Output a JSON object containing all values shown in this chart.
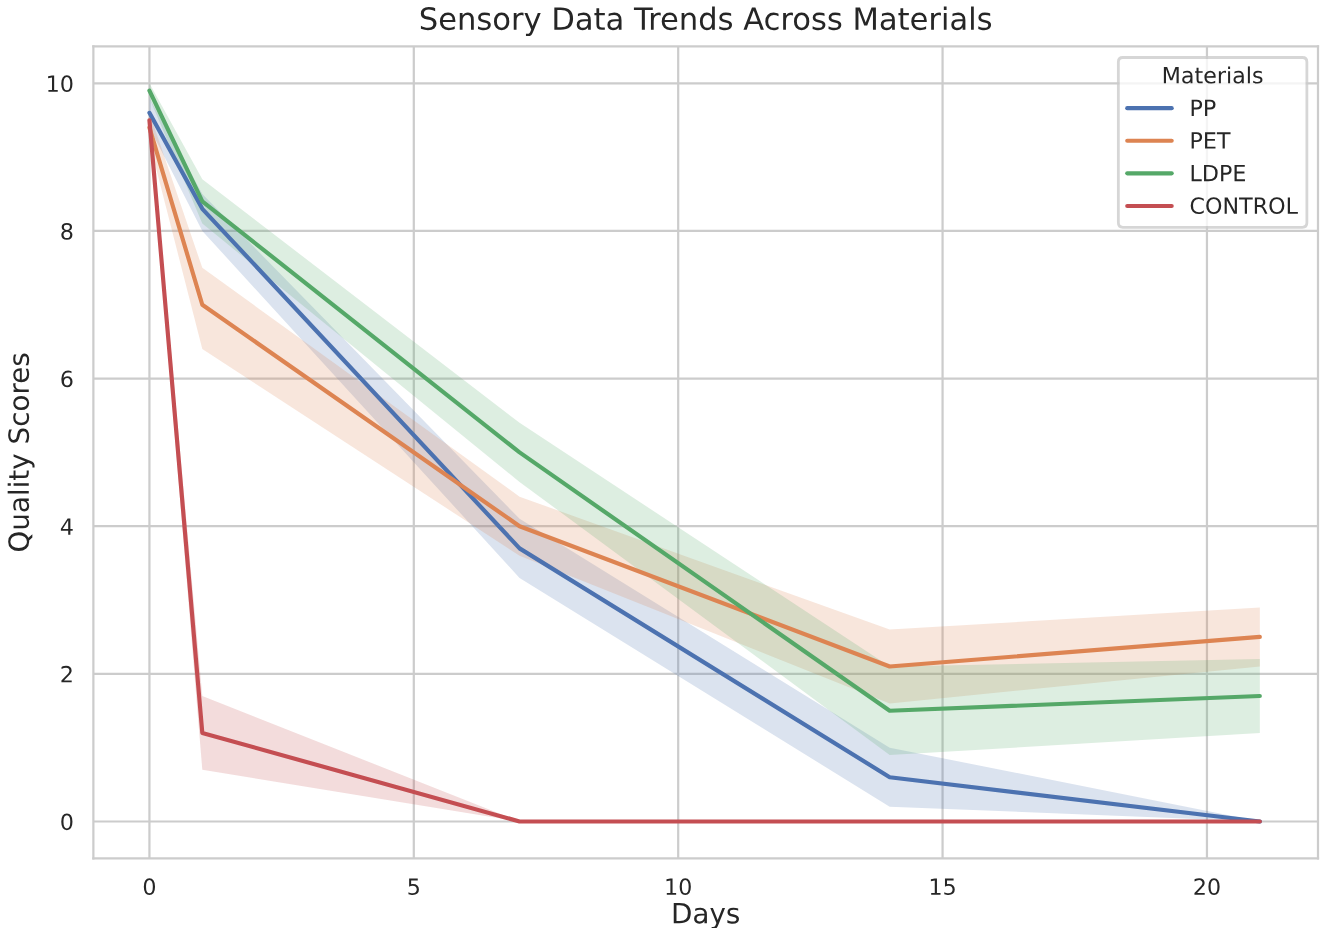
{
  "chart_data": {
    "type": "line",
    "title": "Sensory Data Trends Across Materials",
    "xlabel": "Days",
    "ylabel": "Quality Scores",
    "legend_title": "Materials",
    "x": [
      0,
      1,
      7,
      14,
      21
    ],
    "series": [
      {
        "name": "PP",
        "color": "#4c72b0",
        "values": [
          9.6,
          8.3,
          3.7,
          0.6,
          0
        ],
        "lower": [
          9.4,
          8.0,
          3.3,
          0.2,
          0
        ],
        "upper": [
          9.8,
          8.5,
          4.1,
          1.0,
          0
        ]
      },
      {
        "name": "PET",
        "color": "#dd8452",
        "values": [
          9.4,
          7.0,
          4.0,
          2.1,
          2.5
        ],
        "lower": [
          9.2,
          6.4,
          3.6,
          1.6,
          2.1
        ],
        "upper": [
          9.6,
          7.5,
          4.4,
          2.6,
          2.9
        ]
      },
      {
        "name": "LDPE",
        "color": "#55a868",
        "values": [
          9.9,
          8.4,
          5.0,
          1.5,
          1.7
        ],
        "lower": [
          9.8,
          8.1,
          4.6,
          0.9,
          1.2
        ],
        "upper": [
          10.0,
          8.7,
          5.4,
          2.1,
          2.2
        ]
      },
      {
        "name": "CONTROL",
        "color": "#c44e52",
        "values": [
          9.5,
          1.2,
          0,
          0,
          0
        ],
        "lower": [
          9.4,
          0.7,
          0,
          0,
          0
        ],
        "upper": [
          9.6,
          1.7,
          0,
          0,
          0
        ]
      }
    ],
    "xlim": [
      -1.06,
      22.1
    ],
    "ylim": [
      -0.5,
      10.5
    ],
    "xticks": [
      0,
      5,
      10,
      15,
      20
    ],
    "yticks": [
      0,
      2,
      4,
      6,
      8,
      10
    ],
    "grid": true,
    "legend": "top right",
    "line_style": "solid"
  }
}
